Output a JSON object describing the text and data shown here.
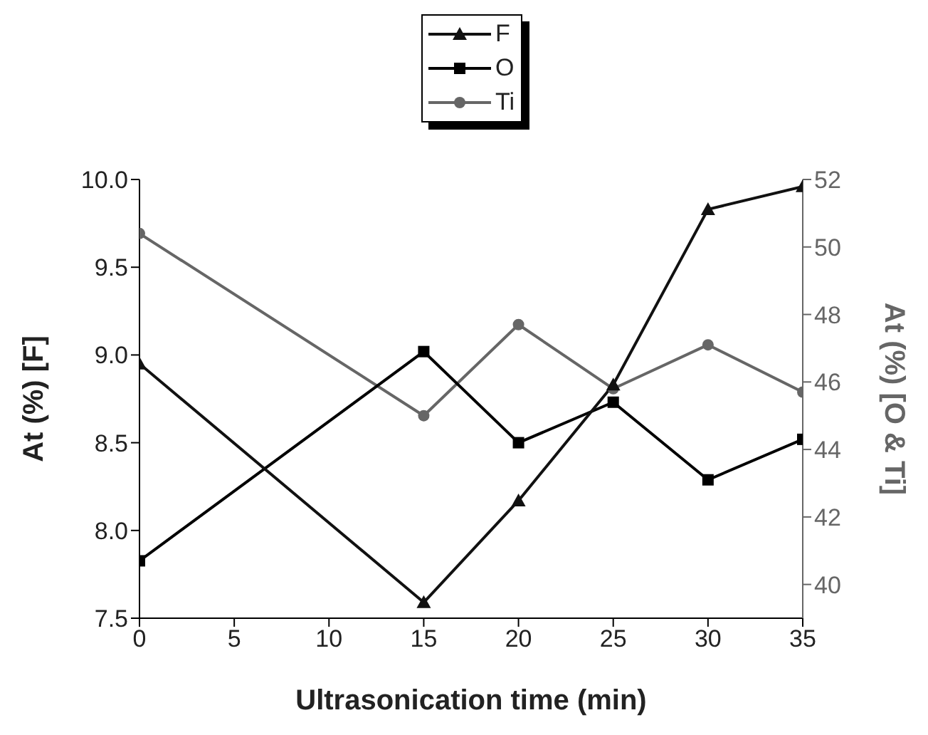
{
  "chart_data": {
    "type": "line",
    "xlabel": "Ultrasonication time (min)",
    "ylabel": "At (%) [F]",
    "y2label": "At (%) [O & Ti]",
    "x": [
      0,
      15,
      20,
      25,
      30,
      35
    ],
    "series": [
      {
        "name": "F",
        "color": "#111111",
        "marker": "triangle",
        "values": [
          8.95,
          7.59,
          8.17,
          8.83,
          9.83,
          9.96
        ]
      },
      {
        "name": "O",
        "color": "#000000",
        "marker": "square",
        "axis": "y2",
        "values": [
          40.7,
          46.9,
          44.2,
          45.4,
          43.1,
          44.3
        ]
      },
      {
        "name": "Ti",
        "color": "#666666",
        "marker": "circle",
        "axis": "y2",
        "values": [
          50.4,
          45.0,
          47.7,
          45.8,
          47.1,
          45.7
        ]
      }
    ],
    "xlim": [
      0,
      35
    ],
    "xticks": [
      0,
      5,
      10,
      15,
      20,
      25,
      30,
      35
    ],
    "ylim": [
      7.5,
      10
    ],
    "yticks": [
      7.5,
      {
        "value": 8,
        "label": "8.0"
      },
      8.5,
      {
        "value": 9,
        "label": "9.0"
      },
      9.5,
      {
        "value": 10,
        "label": "10.0"
      }
    ],
    "y2lim": [
      39,
      52
    ],
    "y2ticks": [
      40,
      42,
      44,
      46,
      48,
      50,
      52
    ],
    "legend": "top",
    "grid": false
  }
}
